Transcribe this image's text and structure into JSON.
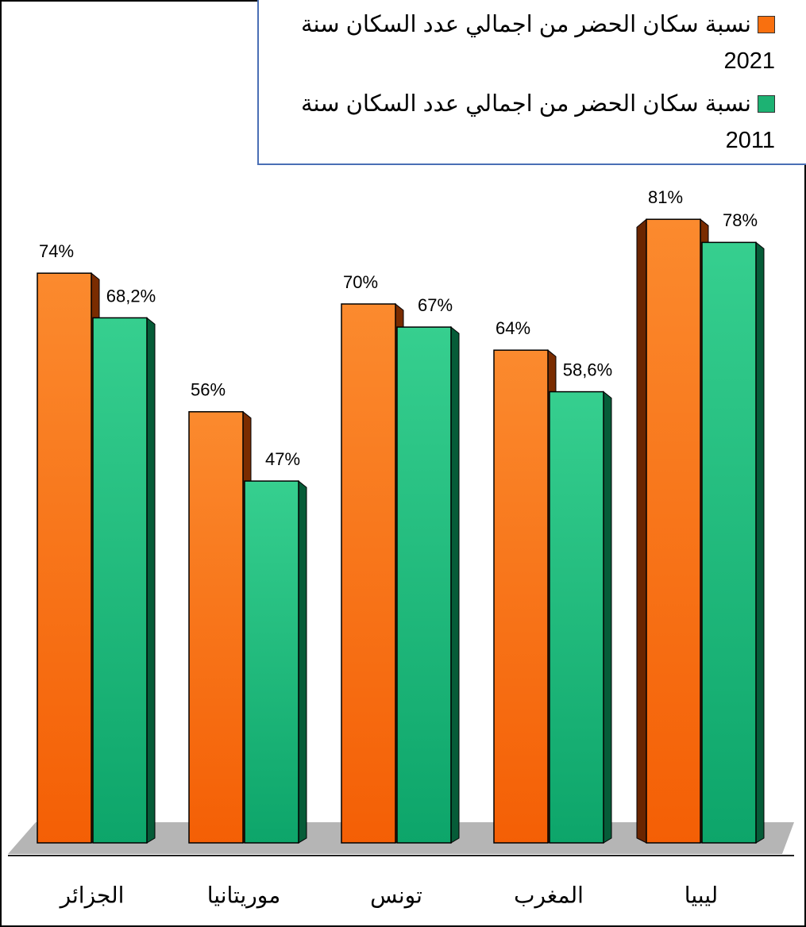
{
  "chart_data": {
    "type": "bar",
    "categories": [
      "الجزائر",
      "موريتانيا",
      "تونس",
      "المغرب",
      "ليبيا"
    ],
    "series": [
      {
        "name": "نسبة سكان الحضر من اجمالي عدد السكان سنة 2021",
        "color": "#f9700f",
        "values": [
          74,
          56,
          70,
          64,
          81
        ],
        "value_labels": [
          "74%",
          "56%",
          "70%",
          "64%",
          "81%"
        ]
      },
      {
        "name": "نسبة سكان الحضر من اجمالي عدد السكان سنة 2011",
        "color": "#1db273",
        "values": [
          68.2,
          47,
          67,
          58.6,
          78
        ],
        "value_labels": [
          "68,2%",
          "47%",
          "67%",
          "58,6%",
          "78%"
        ]
      }
    ],
    "ylim": [
      0,
      100
    ],
    "legend": "top-right"
  }
}
